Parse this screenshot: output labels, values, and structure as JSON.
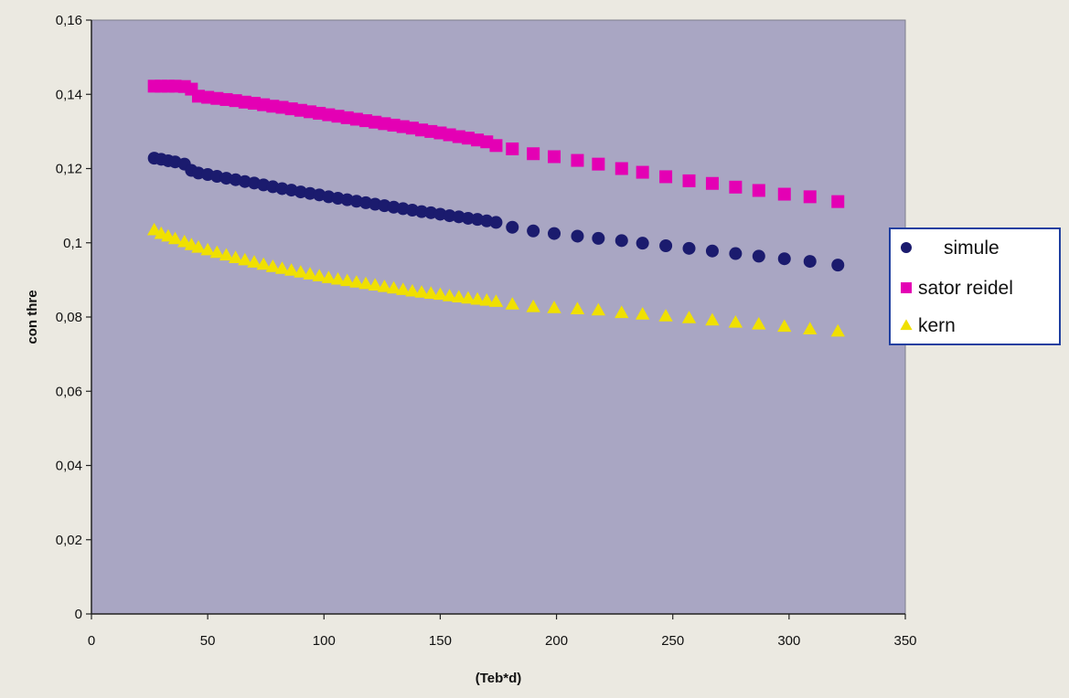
{
  "colors": {
    "page_background": "#ebe9e1",
    "plot_background": "#a9a6c3",
    "plot_border": "#7d7d8c",
    "axis": "#222222",
    "legend_border": "#1f3fa0",
    "legend_background": "#ffffff"
  },
  "chart_data": {
    "type": "scatter",
    "title": "",
    "xlabel": "(Teb*d)",
    "ylabel": "con thre",
    "xlim": [
      0,
      350
    ],
    "ylim": [
      0,
      0.16
    ],
    "x_ticks": [
      0,
      50,
      100,
      150,
      200,
      250,
      300,
      350
    ],
    "y_ticks": [
      0,
      0.02,
      0.04,
      0.06,
      0.08,
      0.1,
      0.12,
      0.14,
      0.16
    ],
    "x_tick_labels": [
      "0",
      "50",
      "100",
      "150",
      "200",
      "250",
      "300",
      "350"
    ],
    "y_tick_labels": [
      "0",
      "0,02",
      "0,04",
      "0,06",
      "0,08",
      "0,1",
      "0,12",
      "0,14",
      "0,16"
    ],
    "grid": false,
    "legend_position": "right",
    "series": [
      {
        "name": "simule",
        "marker": "circle",
        "color": "#1b1b6e",
        "points": [
          [
            27,
            0.1228
          ],
          [
            30,
            0.1225
          ],
          [
            33,
            0.1221
          ],
          [
            36,
            0.1218
          ],
          [
            40,
            0.1212
          ],
          [
            43,
            0.1195
          ],
          [
            46,
            0.1188
          ],
          [
            50,
            0.1184
          ],
          [
            54,
            0.1179
          ],
          [
            58,
            0.1174
          ],
          [
            62,
            0.117
          ],
          [
            66,
            0.1165
          ],
          [
            70,
            0.1161
          ],
          [
            74,
            0.1156
          ],
          [
            78,
            0.1151
          ],
          [
            82,
            0.1146
          ],
          [
            86,
            0.1142
          ],
          [
            90,
            0.1137
          ],
          [
            94,
            0.1133
          ],
          [
            98,
            0.1129
          ],
          [
            102,
            0.1124
          ],
          [
            106,
            0.112
          ],
          [
            110,
            0.1116
          ],
          [
            114,
            0.1112
          ],
          [
            118,
            0.1108
          ],
          [
            122,
            0.1104
          ],
          [
            126,
            0.11
          ],
          [
            130,
            0.1096
          ],
          [
            134,
            0.1092
          ],
          [
            138,
            0.1088
          ],
          [
            142,
            0.1084
          ],
          [
            146,
            0.1081
          ],
          [
            150,
            0.1077
          ],
          [
            154,
            0.1073
          ],
          [
            158,
            0.107
          ],
          [
            162,
            0.1066
          ],
          [
            166,
            0.1063
          ],
          [
            170,
            0.1059
          ],
          [
            174,
            0.1055
          ],
          [
            181,
            0.1042
          ],
          [
            190,
            0.1032
          ],
          [
            199,
            0.1025
          ],
          [
            209,
            0.1018
          ],
          [
            218,
            0.1012
          ],
          [
            228,
            0.1006
          ],
          [
            237,
            0.0999
          ],
          [
            247,
            0.0992
          ],
          [
            257,
            0.0985
          ],
          [
            267,
            0.0978
          ],
          [
            277,
            0.0971
          ],
          [
            287,
            0.0964
          ],
          [
            298,
            0.0957
          ],
          [
            309,
            0.095
          ],
          [
            321,
            0.094
          ]
        ]
      },
      {
        "name": "sator reidel",
        "marker": "square",
        "color": "#e400b4",
        "points": [
          [
            27,
            0.1422
          ],
          [
            30,
            0.1422
          ],
          [
            33,
            0.1422
          ],
          [
            36,
            0.1422
          ],
          [
            40,
            0.1421
          ],
          [
            43,
            0.1414
          ],
          [
            46,
            0.1395
          ],
          [
            50,
            0.1392
          ],
          [
            54,
            0.1389
          ],
          [
            58,
            0.1386
          ],
          [
            62,
            0.1383
          ],
          [
            66,
            0.1379
          ],
          [
            70,
            0.1376
          ],
          [
            74,
            0.1372
          ],
          [
            78,
            0.1368
          ],
          [
            82,
            0.1365
          ],
          [
            86,
            0.1361
          ],
          [
            90,
            0.1357
          ],
          [
            94,
            0.1353
          ],
          [
            98,
            0.1349
          ],
          [
            102,
            0.1345
          ],
          [
            106,
            0.1341
          ],
          [
            110,
            0.1337
          ],
          [
            114,
            0.1333
          ],
          [
            118,
            0.1329
          ],
          [
            122,
            0.1325
          ],
          [
            126,
            0.1321
          ],
          [
            130,
            0.1317
          ],
          [
            134,
            0.1313
          ],
          [
            138,
            0.1309
          ],
          [
            142,
            0.1304
          ],
          [
            146,
            0.13
          ],
          [
            150,
            0.1296
          ],
          [
            154,
            0.1291
          ],
          [
            158,
            0.1286
          ],
          [
            162,
            0.1282
          ],
          [
            166,
            0.1277
          ],
          [
            170,
            0.1272
          ],
          [
            174,
            0.1262
          ],
          [
            181,
            0.1253
          ],
          [
            190,
            0.124
          ],
          [
            199,
            0.1232
          ],
          [
            209,
            0.1222
          ],
          [
            218,
            0.1212
          ],
          [
            228,
            0.12
          ],
          [
            237,
            0.119
          ],
          [
            247,
            0.1178
          ],
          [
            257,
            0.1167
          ],
          [
            267,
            0.116
          ],
          [
            277,
            0.115
          ],
          [
            287,
            0.1141
          ],
          [
            298,
            0.1131
          ],
          [
            309,
            0.1124
          ],
          [
            321,
            0.1111
          ]
        ]
      },
      {
        "name": "kern",
        "marker": "triangle",
        "color": "#f0e000",
        "points": [
          [
            27,
            0.1035
          ],
          [
            30,
            0.1025
          ],
          [
            33,
            0.1018
          ],
          [
            36,
            0.1011
          ],
          [
            40,
            0.1003
          ],
          [
            43,
            0.0995
          ],
          [
            46,
            0.0988
          ],
          [
            50,
            0.0981
          ],
          [
            54,
            0.0974
          ],
          [
            58,
            0.0967
          ],
          [
            62,
            0.096
          ],
          [
            66,
            0.0954
          ],
          [
            70,
            0.0948
          ],
          [
            74,
            0.0942
          ],
          [
            78,
            0.0936
          ],
          [
            82,
            0.0931
          ],
          [
            86,
            0.0926
          ],
          [
            90,
            0.0921
          ],
          [
            94,
            0.0916
          ],
          [
            98,
            0.0911
          ],
          [
            102,
            0.0906
          ],
          [
            106,
            0.0902
          ],
          [
            110,
            0.0898
          ],
          [
            114,
            0.0894
          ],
          [
            118,
            0.089
          ],
          [
            122,
            0.0886
          ],
          [
            126,
            0.0882
          ],
          [
            130,
            0.0878
          ],
          [
            134,
            0.0874
          ],
          [
            138,
            0.087
          ],
          [
            142,
            0.0867
          ],
          [
            146,
            0.0864
          ],
          [
            150,
            0.0861
          ],
          [
            154,
            0.0857
          ],
          [
            158,
            0.0854
          ],
          [
            162,
            0.0851
          ],
          [
            166,
            0.0848
          ],
          [
            170,
            0.0845
          ],
          [
            174,
            0.0842
          ],
          [
            181,
            0.0835
          ],
          [
            190,
            0.0828
          ],
          [
            199,
            0.0825
          ],
          [
            209,
            0.0822
          ],
          [
            218,
            0.0819
          ],
          [
            228,
            0.0812
          ],
          [
            237,
            0.0808
          ],
          [
            247,
            0.0803
          ],
          [
            257,
            0.0798
          ],
          [
            267,
            0.0792
          ],
          [
            277,
            0.0786
          ],
          [
            287,
            0.0781
          ],
          [
            298,
            0.0775
          ],
          [
            309,
            0.0768
          ],
          [
            321,
            0.0762
          ]
        ]
      }
    ]
  }
}
